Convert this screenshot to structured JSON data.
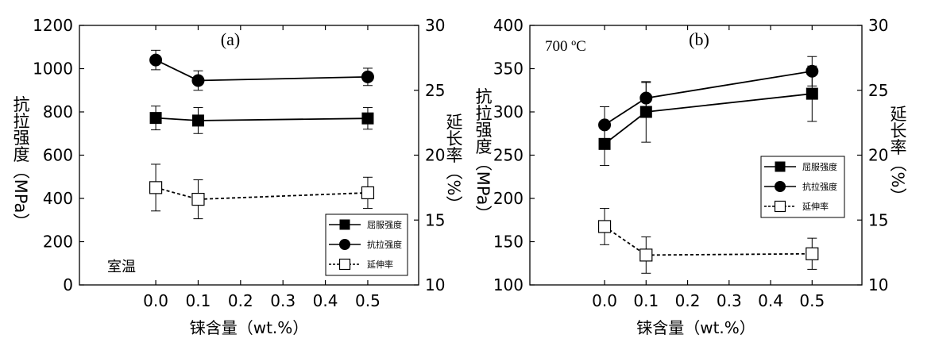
{
  "chart_data": [
    {
      "type": "line",
      "panel_label": "(a)",
      "annotation": "室温",
      "xlabel": "铼含量（wt.%）",
      "ylabel_left": "抗拉强度（MPa）",
      "ylabel_right": "延长率（%）",
      "xlim": [
        -0.18,
        0.62
      ],
      "ylim_left": [
        0,
        1200
      ],
      "ylim_right": [
        10,
        30
      ],
      "x_ticks": [
        "0.0",
        "0.1",
        "0.2",
        "0.3",
        "0.4",
        "0.5"
      ],
      "y_left_ticks": [
        "0",
        "200",
        "400",
        "600",
        "800",
        "1000",
        "1200"
      ],
      "y_right_ticks": [
        "10",
        "15",
        "20",
        "25",
        "30"
      ],
      "legend_position": "bottom-right",
      "series": [
        {
          "name": "屈服强度",
          "axis": "left",
          "marker": "filled-square",
          "line": "solid",
          "x": [
            0.0,
            0.1,
            0.5
          ],
          "y": [
            772,
            760,
            770
          ],
          "err": [
            55,
            60,
            50
          ]
        },
        {
          "name": "抗拉强度",
          "axis": "left",
          "marker": "filled-circle",
          "line": "solid",
          "x": [
            0.0,
            0.1,
            0.5
          ],
          "y": [
            1040,
            945,
            962
          ],
          "err": [
            45,
            45,
            40
          ]
        },
        {
          "name": "延伸率",
          "axis": "right",
          "marker": "open-square",
          "line": "dashed",
          "x": [
            0.0,
            0.1,
            0.5
          ],
          "y": [
            17.5,
            16.6,
            17.1
          ],
          "err": [
            1.8,
            1.5,
            1.2
          ]
        }
      ]
    },
    {
      "type": "line",
      "panel_label": "(b)",
      "annotation": "700 ºC",
      "xlabel": "铼含量（wt.%）",
      "ylabel_left": "抗拉强度（MPa）",
      "ylabel_right": "延长率（%）",
      "xlim": [
        -0.18,
        0.62
      ],
      "ylim_left": [
        100,
        400
      ],
      "ylim_right": [
        10,
        30
      ],
      "x_ticks": [
        "0.0",
        "0.1",
        "0.2",
        "0.3",
        "0.4",
        "0.5"
      ],
      "y_left_ticks": [
        "100",
        "150",
        "200",
        "250",
        "300",
        "350",
        "400"
      ],
      "y_right_ticks": [
        "10",
        "15",
        "20",
        "25",
        "30"
      ],
      "legend_position": "right",
      "series": [
        {
          "name": "屈服强度",
          "axis": "left",
          "marker": "filled-square",
          "line": "solid",
          "x": [
            0.0,
            0.1,
            0.5
          ],
          "y": [
            263,
            300,
            321
          ],
          "err": [
            25,
            35,
            32
          ]
        },
        {
          "name": "抗拉强度",
          "axis": "left",
          "marker": "filled-circle",
          "line": "solid",
          "x": [
            0.0,
            0.1,
            0.5
          ],
          "y": [
            285,
            316,
            347
          ],
          "err": [
            21,
            18,
            17
          ]
        },
        {
          "name": "延伸率",
          "axis": "right",
          "marker": "open-square",
          "line": "dashed",
          "x": [
            0.0,
            0.1,
            0.5
          ],
          "y": [
            14.5,
            12.3,
            12.4
          ],
          "err": [
            1.4,
            1.4,
            1.2
          ]
        }
      ]
    }
  ]
}
